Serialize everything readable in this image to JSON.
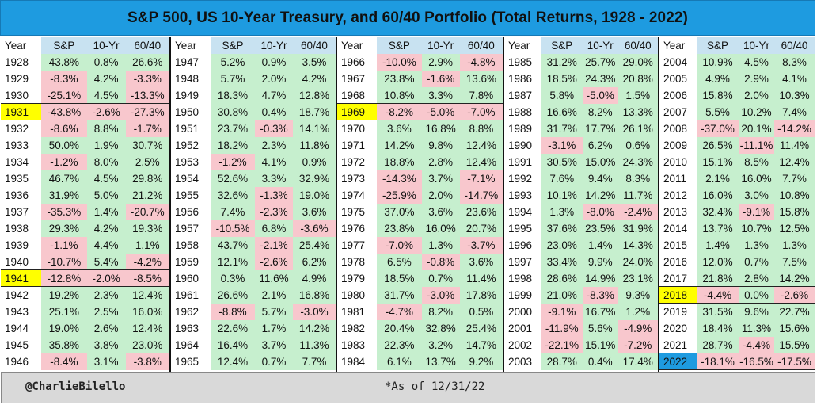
{
  "chart_data": {
    "type": "table",
    "title": "S&P 500, US 10-Year Treasury, and 60/40 Portfolio (Total Returns, 1928 - 2022)",
    "columns": [
      "Year",
      "S&P",
      "10-Yr",
      "60/40"
    ],
    "highlight_years": {
      "1931": "#ffff00",
      "1941": "#ffff00",
      "1969": "#ffff00",
      "2018": "#ffff00",
      "2022": "#1e9be0"
    },
    "colors": {
      "positive": "#c6efce",
      "negative": "#f8c7cd",
      "header": "#c8e2f1",
      "title_bar": "#1e9be0"
    },
    "rows": [
      [
        "1928",
        "43.8%",
        "0.8%",
        "26.6%"
      ],
      [
        "1929",
        "-8.3%",
        "4.2%",
        "-3.3%"
      ],
      [
        "1930",
        "-25.1%",
        "4.5%",
        "-13.3%"
      ],
      [
        "1931",
        "-43.8%",
        "-2.6%",
        "-27.3%"
      ],
      [
        "1932",
        "-8.6%",
        "8.8%",
        "-1.7%"
      ],
      [
        "1933",
        "50.0%",
        "1.9%",
        "30.7%"
      ],
      [
        "1934",
        "-1.2%",
        "8.0%",
        "2.5%"
      ],
      [
        "1935",
        "46.7%",
        "4.5%",
        "29.8%"
      ],
      [
        "1936",
        "31.9%",
        "5.0%",
        "21.2%"
      ],
      [
        "1937",
        "-35.3%",
        "1.4%",
        "-20.7%"
      ],
      [
        "1938",
        "29.3%",
        "4.2%",
        "19.3%"
      ],
      [
        "1939",
        "-1.1%",
        "4.4%",
        "1.1%"
      ],
      [
        "1940",
        "-10.7%",
        "5.4%",
        "-4.2%"
      ],
      [
        "1941",
        "-12.8%",
        "-2.0%",
        "-8.5%"
      ],
      [
        "1942",
        "19.2%",
        "2.3%",
        "12.4%"
      ],
      [
        "1943",
        "25.1%",
        "2.5%",
        "16.0%"
      ],
      [
        "1944",
        "19.0%",
        "2.6%",
        "12.4%"
      ],
      [
        "1945",
        "35.8%",
        "3.8%",
        "23.0%"
      ],
      [
        "1946",
        "-8.4%",
        "3.1%",
        "-3.8%"
      ],
      [
        "1947",
        "5.2%",
        "0.9%",
        "3.5%"
      ],
      [
        "1948",
        "5.7%",
        "2.0%",
        "4.2%"
      ],
      [
        "1949",
        "18.3%",
        "4.7%",
        "12.8%"
      ],
      [
        "1950",
        "30.8%",
        "0.4%",
        "18.7%"
      ],
      [
        "1951",
        "23.7%",
        "-0.3%",
        "14.1%"
      ],
      [
        "1952",
        "18.2%",
        "2.3%",
        "11.8%"
      ],
      [
        "1953",
        "-1.2%",
        "4.1%",
        "0.9%"
      ],
      [
        "1954",
        "52.6%",
        "3.3%",
        "32.9%"
      ],
      [
        "1955",
        "32.6%",
        "-1.3%",
        "19.0%"
      ],
      [
        "1956",
        "7.4%",
        "-2.3%",
        "3.6%"
      ],
      [
        "1957",
        "-10.5%",
        "6.8%",
        "-3.6%"
      ],
      [
        "1958",
        "43.7%",
        "-2.1%",
        "25.4%"
      ],
      [
        "1959",
        "12.1%",
        "-2.6%",
        "6.2%"
      ],
      [
        "1960",
        "0.3%",
        "11.6%",
        "4.9%"
      ],
      [
        "1961",
        "26.6%",
        "2.1%",
        "16.8%"
      ],
      [
        "1962",
        "-8.8%",
        "5.7%",
        "-3.0%"
      ],
      [
        "1963",
        "22.6%",
        "1.7%",
        "14.2%"
      ],
      [
        "1964",
        "16.4%",
        "3.7%",
        "11.3%"
      ],
      [
        "1965",
        "12.4%",
        "0.7%",
        "7.7%"
      ],
      [
        "1966",
        "-10.0%",
        "2.9%",
        "-4.8%"
      ],
      [
        "1967",
        "23.8%",
        "-1.6%",
        "13.6%"
      ],
      [
        "1968",
        "10.8%",
        "3.3%",
        "7.8%"
      ],
      [
        "1969",
        "-8.2%",
        "-5.0%",
        "-7.0%"
      ],
      [
        "1970",
        "3.6%",
        "16.8%",
        "8.8%"
      ],
      [
        "1971",
        "14.2%",
        "9.8%",
        "12.4%"
      ],
      [
        "1972",
        "18.8%",
        "2.8%",
        "12.4%"
      ],
      [
        "1973",
        "-14.3%",
        "3.7%",
        "-7.1%"
      ],
      [
        "1974",
        "-25.9%",
        "2.0%",
        "-14.7%"
      ],
      [
        "1975",
        "37.0%",
        "3.6%",
        "23.6%"
      ],
      [
        "1976",
        "23.8%",
        "16.0%",
        "20.7%"
      ],
      [
        "1977",
        "-7.0%",
        "1.3%",
        "-3.7%"
      ],
      [
        "1978",
        "6.5%",
        "-0.8%",
        "3.6%"
      ],
      [
        "1979",
        "18.5%",
        "0.7%",
        "11.4%"
      ],
      [
        "1980",
        "31.7%",
        "-3.0%",
        "17.8%"
      ],
      [
        "1981",
        "-4.7%",
        "8.2%",
        "0.5%"
      ],
      [
        "1982",
        "20.4%",
        "32.8%",
        "25.4%"
      ],
      [
        "1983",
        "22.3%",
        "3.2%",
        "14.7%"
      ],
      [
        "1984",
        "6.1%",
        "13.7%",
        "9.2%"
      ],
      [
        "1985",
        "31.2%",
        "25.7%",
        "29.0%"
      ],
      [
        "1986",
        "18.5%",
        "24.3%",
        "20.8%"
      ],
      [
        "1987",
        "5.8%",
        "-5.0%",
        "1.5%"
      ],
      [
        "1988",
        "16.6%",
        "8.2%",
        "13.3%"
      ],
      [
        "1989",
        "31.7%",
        "17.7%",
        "26.1%"
      ],
      [
        "1990",
        "-3.1%",
        "6.2%",
        "0.6%"
      ],
      [
        "1991",
        "30.5%",
        "15.0%",
        "24.3%"
      ],
      [
        "1992",
        "7.6%",
        "9.4%",
        "8.3%"
      ],
      [
        "1993",
        "10.1%",
        "14.2%",
        "11.7%"
      ],
      [
        "1994",
        "1.3%",
        "-8.0%",
        "-2.4%"
      ],
      [
        "1995",
        "37.6%",
        "23.5%",
        "31.9%"
      ],
      [
        "1996",
        "23.0%",
        "1.4%",
        "14.3%"
      ],
      [
        "1997",
        "33.4%",
        "9.9%",
        "24.0%"
      ],
      [
        "1998",
        "28.6%",
        "14.9%",
        "23.1%"
      ],
      [
        "1999",
        "21.0%",
        "-8.3%",
        "9.3%"
      ],
      [
        "2000",
        "-9.1%",
        "16.7%",
        "1.2%"
      ],
      [
        "2001",
        "-11.9%",
        "5.6%",
        "-4.9%"
      ],
      [
        "2002",
        "-22.1%",
        "15.1%",
        "-7.2%"
      ],
      [
        "2003",
        "28.7%",
        "0.4%",
        "17.4%"
      ],
      [
        "2004",
        "10.9%",
        "4.5%",
        "8.3%"
      ],
      [
        "2005",
        "4.9%",
        "2.9%",
        "4.1%"
      ],
      [
        "2006",
        "15.8%",
        "2.0%",
        "10.3%"
      ],
      [
        "2007",
        "5.5%",
        "10.2%",
        "7.4%"
      ],
      [
        "2008",
        "-37.0%",
        "20.1%",
        "-14.2%"
      ],
      [
        "2009",
        "26.5%",
        "-11.1%",
        "11.4%"
      ],
      [
        "2010",
        "15.1%",
        "8.5%",
        "12.4%"
      ],
      [
        "2011",
        "2.1%",
        "16.0%",
        "7.7%"
      ],
      [
        "2012",
        "16.0%",
        "3.0%",
        "10.8%"
      ],
      [
        "2013",
        "32.4%",
        "-9.1%",
        "15.8%"
      ],
      [
        "2014",
        "13.7%",
        "10.7%",
        "12.5%"
      ],
      [
        "2015",
        "1.4%",
        "1.3%",
        "1.3%"
      ],
      [
        "2016",
        "12.0%",
        "0.7%",
        "7.5%"
      ],
      [
        "2017",
        "21.8%",
        "2.8%",
        "14.2%"
      ],
      [
        "2018",
        "-4.4%",
        "0.0%",
        "-2.6%"
      ],
      [
        "2019",
        "31.5%",
        "9.6%",
        "22.7%"
      ],
      [
        "2020",
        "18.4%",
        "11.3%",
        "15.6%"
      ],
      [
        "2021",
        "28.7%",
        "-4.4%",
        "15.5%"
      ],
      [
        "2022",
        "-18.1%",
        "-16.5%",
        "-17.5%"
      ]
    ]
  },
  "footer": {
    "handle": "@CharlieBilello",
    "as_of": "*As of 12/31/22"
  }
}
